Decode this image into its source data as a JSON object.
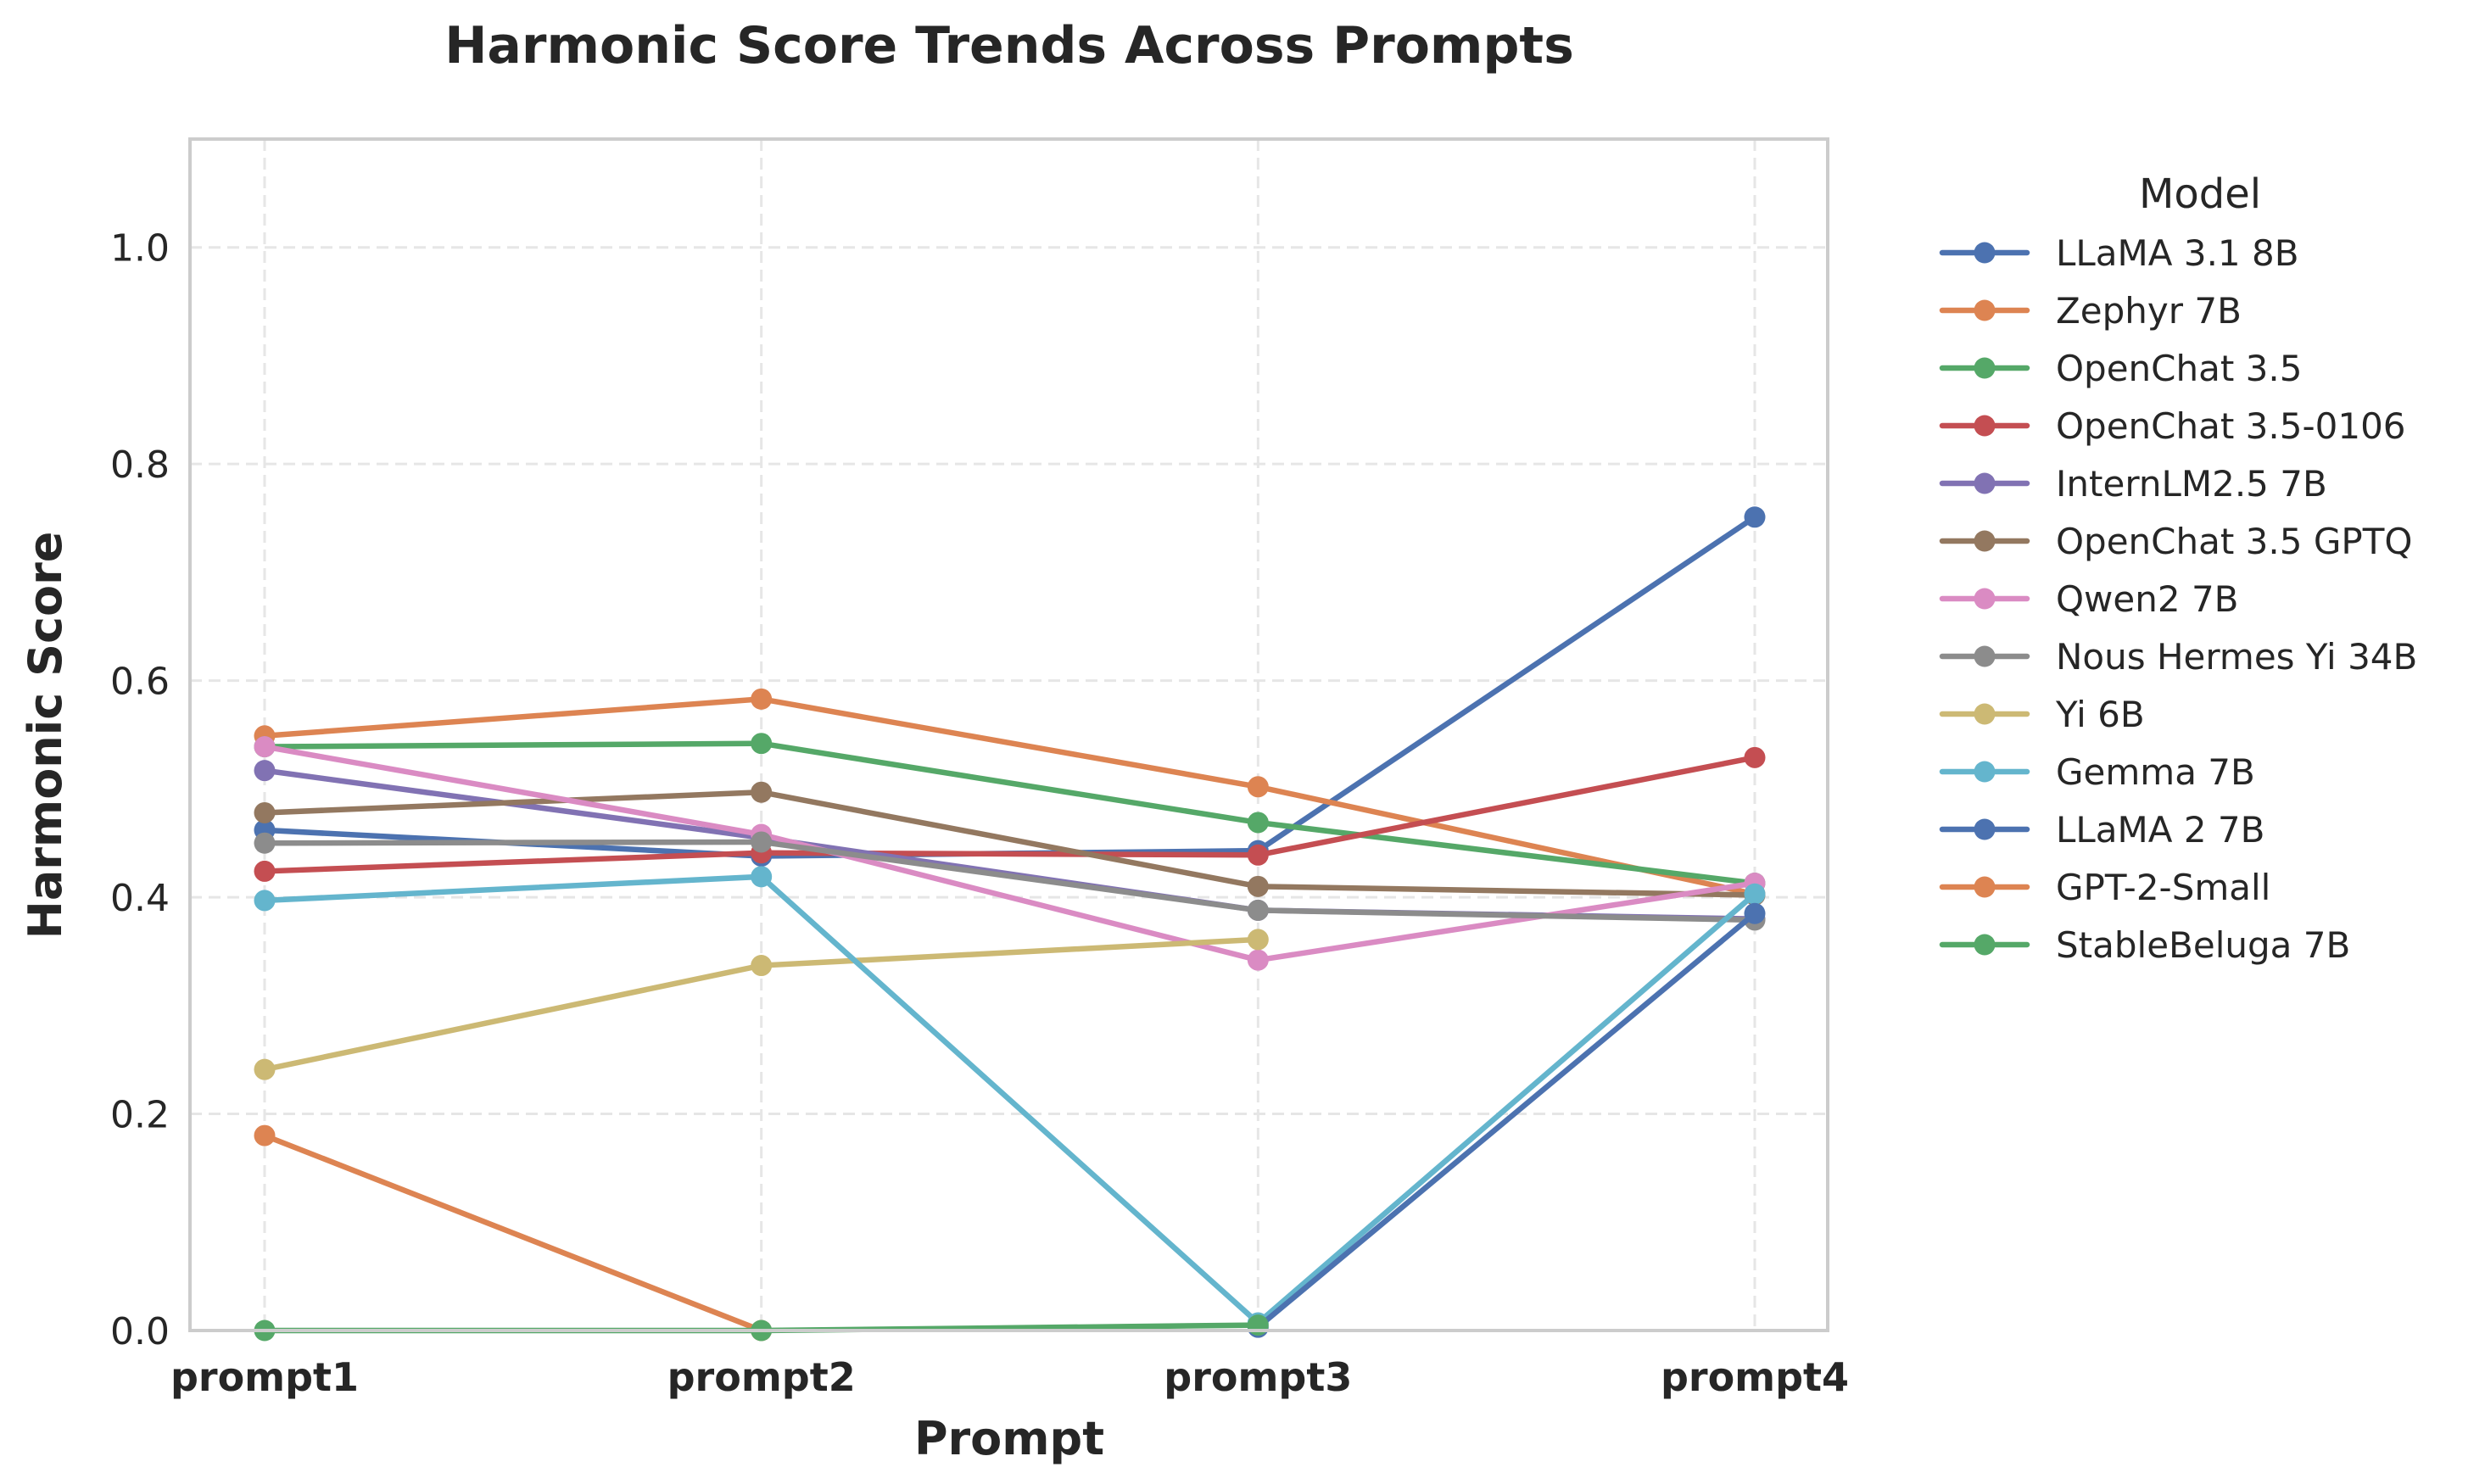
{
  "chart_data": {
    "type": "line",
    "title": "Harmonic Score Trends Across Prompts",
    "xlabel": "Prompt",
    "ylabel": "Harmonic Score",
    "categories": [
      "prompt1",
      "prompt2",
      "prompt3",
      "prompt4"
    ],
    "ylim": [
      0,
      1.1
    ],
    "yticks": [
      0.0,
      0.2,
      0.4,
      0.6,
      0.8,
      1.0
    ],
    "ytick_labels": [
      "0.0",
      "0.2",
      "0.4",
      "0.6",
      "0.8",
      "1.0"
    ],
    "grid": true,
    "legend_title": "Model",
    "legend_position": "outside-right",
    "series": [
      {
        "name": "LLaMA 3.1 8B",
        "color": "#4c72b0",
        "values": [
          0.462,
          0.438,
          0.443,
          0.751
        ]
      },
      {
        "name": "Zephyr 7B",
        "color": "#dd8452",
        "values": [
          0.549,
          0.583,
          0.502,
          0.403
        ]
      },
      {
        "name": "OpenChat 3.5",
        "color": "#55a868",
        "values": [
          0.539,
          0.542,
          0.469,
          0.413
        ]
      },
      {
        "name": "OpenChat 3.5-0106",
        "color": "#c44e52",
        "values": [
          0.424,
          0.441,
          0.439,
          0.529
        ]
      },
      {
        "name": "InternLM2.5 7B",
        "color": "#8172b3",
        "values": [
          0.517,
          0.455,
          0.388,
          0.38
        ]
      },
      {
        "name": "OpenChat 3.5 GPTQ",
        "color": "#937860",
        "values": [
          0.478,
          0.497,
          0.41,
          0.402
        ]
      },
      {
        "name": "Qwen2 7B",
        "color": "#da8bc3",
        "values": [
          0.539,
          0.458,
          0.342,
          0.413
        ]
      },
      {
        "name": "Nous Hermes Yi 34B",
        "color": "#8c8c8c",
        "values": [
          0.45,
          0.451,
          0.388,
          0.379
        ]
      },
      {
        "name": "Yi 6B",
        "color": "#ccb974",
        "values": [
          0.241,
          0.337,
          0.361,
          null
        ]
      },
      {
        "name": "Gemma 7B",
        "color": "#64b5cd",
        "values": [
          0.397,
          0.419,
          0.007,
          0.403
        ]
      },
      {
        "name": "LLaMA 2 7B",
        "color": "#4c72b0",
        "values": [
          null,
          null,
          0.003,
          0.385
        ]
      },
      {
        "name": "GPT-2-Small",
        "color": "#dd8452",
        "values": [
          0.18,
          0.0,
          null,
          null
        ]
      },
      {
        "name": "StableBeluga 7B",
        "color": "#55a868",
        "values": [
          0.0,
          0.0,
          0.005,
          null
        ]
      }
    ]
  }
}
